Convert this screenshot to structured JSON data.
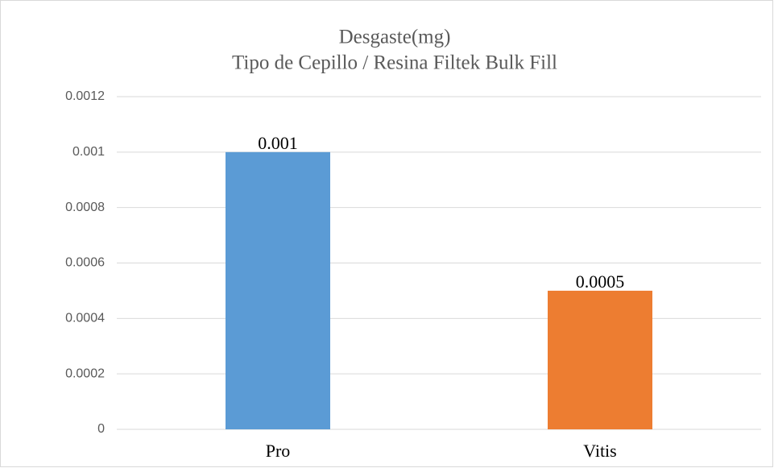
{
  "chart_data": {
    "type": "bar",
    "title": "Desgaste(mg)",
    "subtitle": "Tipo de Cepillo / Resina Filtek Bulk Fill",
    "categories": [
      "Pro",
      "Vitis"
    ],
    "values": [
      0.001,
      0.0005
    ],
    "colors": [
      "#5b9bd5",
      "#ed7d31"
    ],
    "ylim": [
      0,
      0.0012
    ],
    "yticks": [
      0,
      0.0002,
      0.0004,
      0.0006,
      0.0008,
      0.001,
      0.0012
    ],
    "grid": true,
    "data_labels": true
  }
}
